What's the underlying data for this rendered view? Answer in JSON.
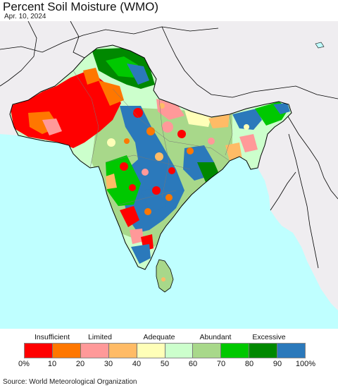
{
  "title": "Percent Soil Moisture (WMO)",
  "date": "Apr. 10, 2024",
  "source": "Source: World Meteorological Organization",
  "legend": {
    "categories": [
      {
        "label": "Insufficient",
        "at": 10
      },
      {
        "label": "Limited",
        "at": 27
      },
      {
        "label": "Adequate",
        "at": 48
      },
      {
        "label": "Abundant",
        "at": 68
      },
      {
        "label": "Excessive",
        "at": 87
      }
    ],
    "ticks": [
      "0%",
      "10",
      "20",
      "30",
      "40",
      "50",
      "60",
      "70",
      "80",
      "90",
      "100%"
    ],
    "colors": [
      "#ff0000",
      "#ff7700",
      "#ff9999",
      "#ffbb66",
      "#ffffb8",
      "#ccffcc",
      "#a8d88a",
      "#00c800",
      "#008800",
      "#2b79bb"
    ]
  },
  "colors": {
    "ocean": "#bfffff",
    "land_outside": "#efedf0",
    "border": "#000000"
  }
}
